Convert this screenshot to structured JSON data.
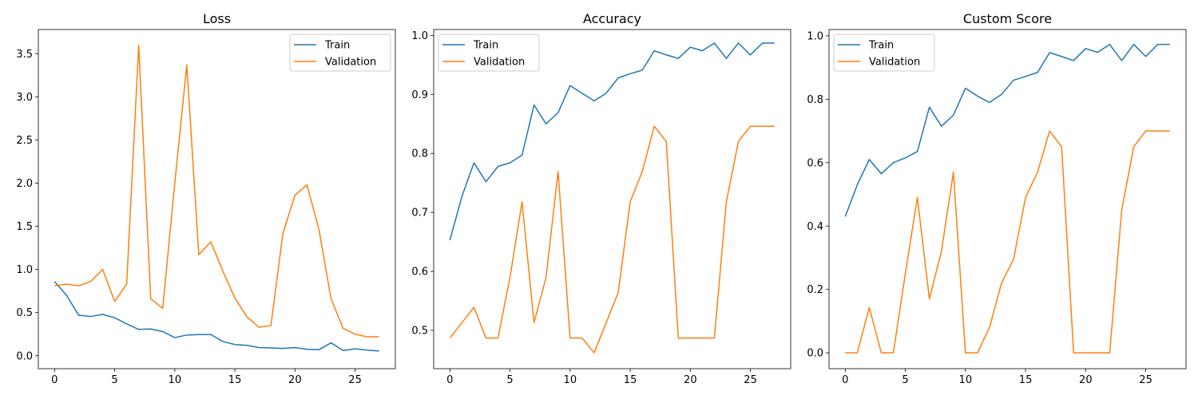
{
  "chart_data": [
    {
      "type": "line",
      "title": "Loss",
      "xlabel": "",
      "ylabel": "",
      "xlim": [
        -1.35,
        28.35
      ],
      "ylim": [
        -0.15,
        3.78
      ],
      "xticks": [
        0,
        5,
        10,
        15,
        20,
        25
      ],
      "xtick_labels": [
        "0",
        "5",
        "10",
        "15",
        "20",
        "25"
      ],
      "yticks": [
        0.0,
        0.5,
        1.0,
        1.5,
        2.0,
        2.5,
        3.0,
        3.5
      ],
      "ytick_labels": [
        "0.0",
        "0.5",
        "1.0",
        "1.5",
        "2.0",
        "2.5",
        "3.0",
        "3.5"
      ],
      "legend_position": "upper right",
      "x": [
        0,
        1,
        2,
        3,
        4,
        5,
        6,
        7,
        8,
        9,
        10,
        11,
        12,
        13,
        14,
        15,
        16,
        17,
        18,
        19,
        20,
        21,
        22,
        23,
        24,
        25,
        26,
        27
      ],
      "series": [
        {
          "name": "Train",
          "color": "#1f77b4",
          "values": [
            0.86,
            0.7,
            0.47,
            0.455,
            0.48,
            0.44,
            0.37,
            0.305,
            0.31,
            0.28,
            0.21,
            0.24,
            0.245,
            0.245,
            0.165,
            0.13,
            0.12,
            0.095,
            0.09,
            0.085,
            0.095,
            0.075,
            0.07,
            0.15,
            0.06,
            0.08,
            0.065,
            0.055
          ]
        },
        {
          "name": "Validation",
          "color": "#ff7f0e",
          "values": [
            0.81,
            0.83,
            0.81,
            0.86,
            1.0,
            0.63,
            0.83,
            3.6,
            0.66,
            0.55,
            2.0,
            3.37,
            1.17,
            1.32,
            0.98,
            0.67,
            0.45,
            0.33,
            0.35,
            1.42,
            1.86,
            1.98,
            1.46,
            0.66,
            0.32,
            0.25,
            0.22,
            0.22
          ]
        }
      ]
    },
    {
      "type": "line",
      "title": "Accuracy",
      "xlabel": "",
      "ylabel": "",
      "xlim": [
        -1.35,
        28.35
      ],
      "ylim": [
        0.435,
        1.01
      ],
      "xticks": [
        0,
        5,
        10,
        15,
        20,
        25
      ],
      "xtick_labels": [
        "0",
        "5",
        "10",
        "15",
        "20",
        "25"
      ],
      "yticks": [
        0.5,
        0.6,
        0.7,
        0.8,
        0.9,
        1.0
      ],
      "ytick_labels": [
        "0.5",
        "0.6",
        "0.7",
        "0.8",
        "0.9",
        "1.0"
      ],
      "legend_position": "upper left",
      "x": [
        0,
        1,
        2,
        3,
        4,
        5,
        6,
        7,
        8,
        9,
        10,
        11,
        12,
        13,
        14,
        15,
        16,
        17,
        18,
        19,
        20,
        21,
        22,
        23,
        24,
        25,
        26,
        27
      ],
      "series": [
        {
          "name": "Train",
          "color": "#1f77b4",
          "values": [
            0.653,
            0.727,
            0.784,
            0.752,
            0.778,
            0.784,
            0.797,
            0.882,
            0.85,
            0.869,
            0.915,
            0.902,
            0.889,
            0.902,
            0.928,
            0.935,
            0.941,
            0.974,
            0.967,
            0.961,
            0.98,
            0.974,
            0.987,
            0.961,
            0.987,
            0.967,
            0.987,
            0.987
          ]
        },
        {
          "name": "Validation",
          "color": "#ff7f0e",
          "values": [
            0.487,
            0.513,
            0.539,
            0.487,
            0.487,
            0.59,
            0.718,
            0.513,
            0.59,
            0.769,
            0.487,
            0.487,
            0.462,
            0.513,
            0.564,
            0.718,
            0.769,
            0.846,
            0.82,
            0.487,
            0.487,
            0.487,
            0.487,
            0.718,
            0.82,
            0.846,
            0.846,
            0.846
          ]
        }
      ]
    },
    {
      "type": "line",
      "title": "Custom Score",
      "xlabel": "",
      "ylabel": "",
      "xlim": [
        -1.35,
        28.35
      ],
      "ylim": [
        -0.05,
        1.02
      ],
      "xticks": [
        0,
        5,
        10,
        15,
        20,
        25
      ],
      "xtick_labels": [
        "0",
        "5",
        "10",
        "15",
        "20",
        "25"
      ],
      "yticks": [
        0.0,
        0.2,
        0.4,
        0.6,
        0.8,
        1.0
      ],
      "ytick_labels": [
        "0.0",
        "0.2",
        "0.4",
        "0.6",
        "0.8",
        "1.0"
      ],
      "legend_position": "upper left",
      "x": [
        0,
        1,
        2,
        3,
        4,
        5,
        6,
        7,
        8,
        9,
        10,
        11,
        12,
        13,
        14,
        15,
        16,
        17,
        18,
        19,
        20,
        21,
        22,
        23,
        24,
        25,
        26,
        27
      ],
      "series": [
        {
          "name": "Train",
          "color": "#1f77b4",
          "values": [
            0.43,
            0.53,
            0.61,
            0.565,
            0.6,
            0.615,
            0.635,
            0.775,
            0.715,
            0.75,
            0.835,
            0.81,
            0.79,
            0.815,
            0.86,
            0.872,
            0.885,
            0.947,
            0.935,
            0.922,
            0.96,
            0.948,
            0.973,
            0.922,
            0.973,
            0.935,
            0.973,
            0.973
          ]
        },
        {
          "name": "Validation",
          "color": "#ff7f0e",
          "values": [
            0.0,
            0.0,
            0.143,
            0.0,
            0.0,
            0.25,
            0.49,
            0.17,
            0.32,
            0.57,
            0.0,
            0.0,
            0.08,
            0.22,
            0.295,
            0.49,
            0.57,
            0.7,
            0.65,
            0.0,
            0.0,
            0.0,
            0.0,
            0.45,
            0.65,
            0.7,
            0.7,
            0.7
          ]
        }
      ]
    }
  ]
}
